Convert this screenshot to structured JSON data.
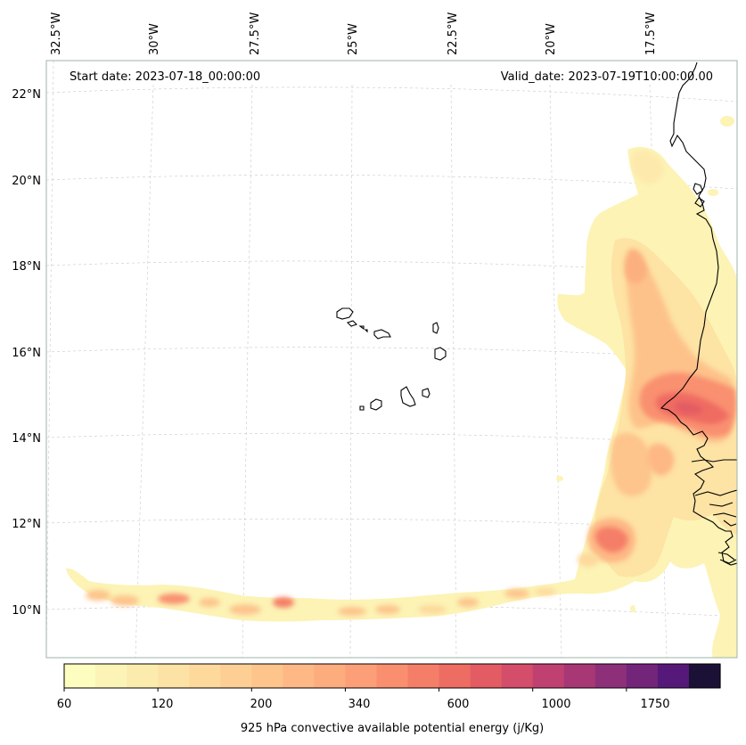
{
  "map": {
    "start_date_label": "Start date: 2023-07-18_00:00:00",
    "valid_date_label": "Valid_date: 2023-07-19T10:00:00.00",
    "lon_labels": [
      "32.5°W",
      "30°W",
      "27.5°W",
      "25°W",
      "22.5°W",
      "20°W",
      "17.5°W"
    ],
    "lat_labels": [
      "22°N",
      "20°N",
      "18°N",
      "16°N",
      "14°N",
      "12°N",
      "10°N"
    ],
    "colormap": "magma_r",
    "coastline_color": "#000000",
    "gridline_style": "dashed light gray"
  },
  "colorbar": {
    "title": "925 hPa convective available potential energy (j/Kg)",
    "tick_labels": [
      "60",
      "120",
      "200",
      "340",
      "600",
      "1000",
      "1750"
    ],
    "levels": [
      60,
      80,
      100,
      120,
      140,
      160,
      200,
      240,
      280,
      340,
      400,
      480,
      600,
      700,
      850,
      1000,
      1200,
      1450,
      1750,
      2000,
      2500
    ],
    "colors": [
      "#fcfdbf",
      "#fbf4b6",
      "#fbebad",
      "#fce2a4",
      "#fdd99c",
      "#fdcf94",
      "#fdc48c",
      "#fdb885",
      "#fdac7e",
      "#fc9f78",
      "#fa8f6f",
      "#f57e68",
      "#ee6d63",
      "#e35c63",
      "#d44d6a",
      "#c04171",
      "#a83776",
      "#8e2f7a",
      "#73257a",
      "#551a79",
      "#1b1136"
    ]
  }
}
